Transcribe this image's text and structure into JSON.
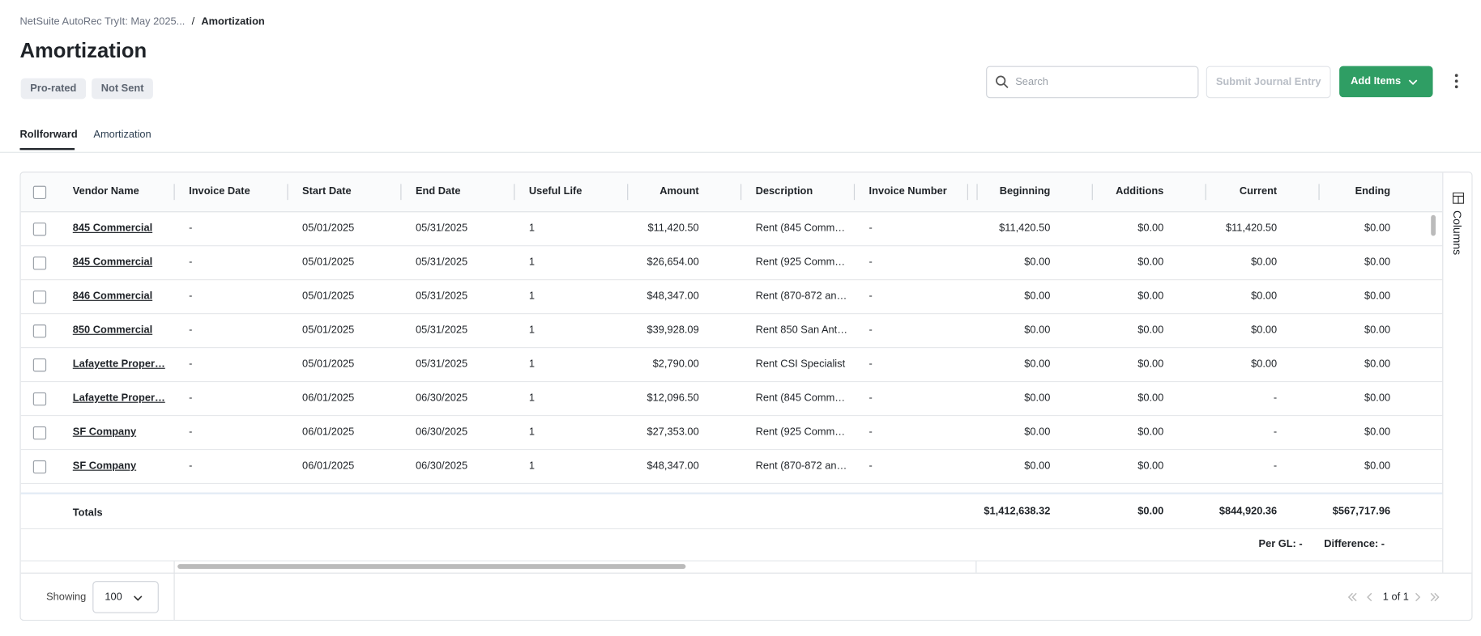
{
  "breadcrumb": {
    "items": [
      "NetSuite AutoRec TryIt: May 2025...",
      "Amortization"
    ],
    "separator": "/"
  },
  "header": {
    "title": "Amortization",
    "tags": [
      "Pro-rated",
      "Not Sent"
    ]
  },
  "toolbar": {
    "search_placeholder": "Search",
    "submit_button": "Submit Journal Entry",
    "add_button": "Add Items"
  },
  "tabs": {
    "items": [
      "Rollforward",
      "Amortization"
    ],
    "active": "Rollforward"
  },
  "table": {
    "columns": [
      "Vendor Name",
      "Invoice Date",
      "Start Date",
      "End Date",
      "Useful Life",
      "Amount",
      "Description",
      "Invoice Number",
      "Beginning",
      "Additions",
      "Current",
      "Ending"
    ],
    "rows": [
      [
        "845 Commercial",
        "-",
        "05/01/2025",
        "05/31/2025",
        "1",
        "$11,420.50",
        "Rent (845 Comm…",
        "-",
        "$11,420.50",
        "$0.00",
        "$11,420.50",
        "$0.00"
      ],
      [
        "845 Commercial",
        "-",
        "05/01/2025",
        "05/31/2025",
        "1",
        "$26,654.00",
        "Rent (925 Comm…",
        "-",
        "$0.00",
        "$0.00",
        "$0.00",
        "$0.00"
      ],
      [
        "846 Commercial",
        "-",
        "05/01/2025",
        "05/31/2025",
        "1",
        "$48,347.00",
        "Rent (870-872 an…",
        "-",
        "$0.00",
        "$0.00",
        "$0.00",
        "$0.00"
      ],
      [
        "850 Commercial",
        "-",
        "05/01/2025",
        "05/31/2025",
        "1",
        "$39,928.09",
        "Rent 850 San Ant…",
        "-",
        "$0.00",
        "$0.00",
        "$0.00",
        "$0.00"
      ],
      [
        "Lafayette Proper…",
        "-",
        "05/01/2025",
        "05/31/2025",
        "1",
        "$2,790.00",
        "Rent CSI Specialist",
        "-",
        "$0.00",
        "$0.00",
        "$0.00",
        "$0.00"
      ],
      [
        "Lafayette Proper…",
        "-",
        "06/01/2025",
        "06/30/2025",
        "1",
        "$12,096.50",
        "Rent (845 Comm…",
        "-",
        "$0.00",
        "$0.00",
        "-",
        "$0.00"
      ],
      [
        "SF Company",
        "-",
        "06/01/2025",
        "06/30/2025",
        "1",
        "$27,353.00",
        "Rent (925 Comm…",
        "-",
        "$0.00",
        "$0.00",
        "-",
        "$0.00"
      ],
      [
        "SF Company",
        "-",
        "06/01/2025",
        "06/30/2025",
        "1",
        "$48,347.00",
        "Rent (870-872 an…",
        "-",
        "$0.00",
        "$0.00",
        "-",
        "$0.00"
      ]
    ],
    "totals": {
      "label": "Totals",
      "values": [
        "$1,412,638.32",
        "$0.00",
        "$844,920.36",
        "$567,717.96"
      ]
    },
    "per_gl": "Per GL: -",
    "difference": "Difference: -",
    "columns_button": "Columns"
  },
  "footer": {
    "showing_label": "Showing",
    "page_size": "100",
    "page_info": "1 of 1"
  }
}
